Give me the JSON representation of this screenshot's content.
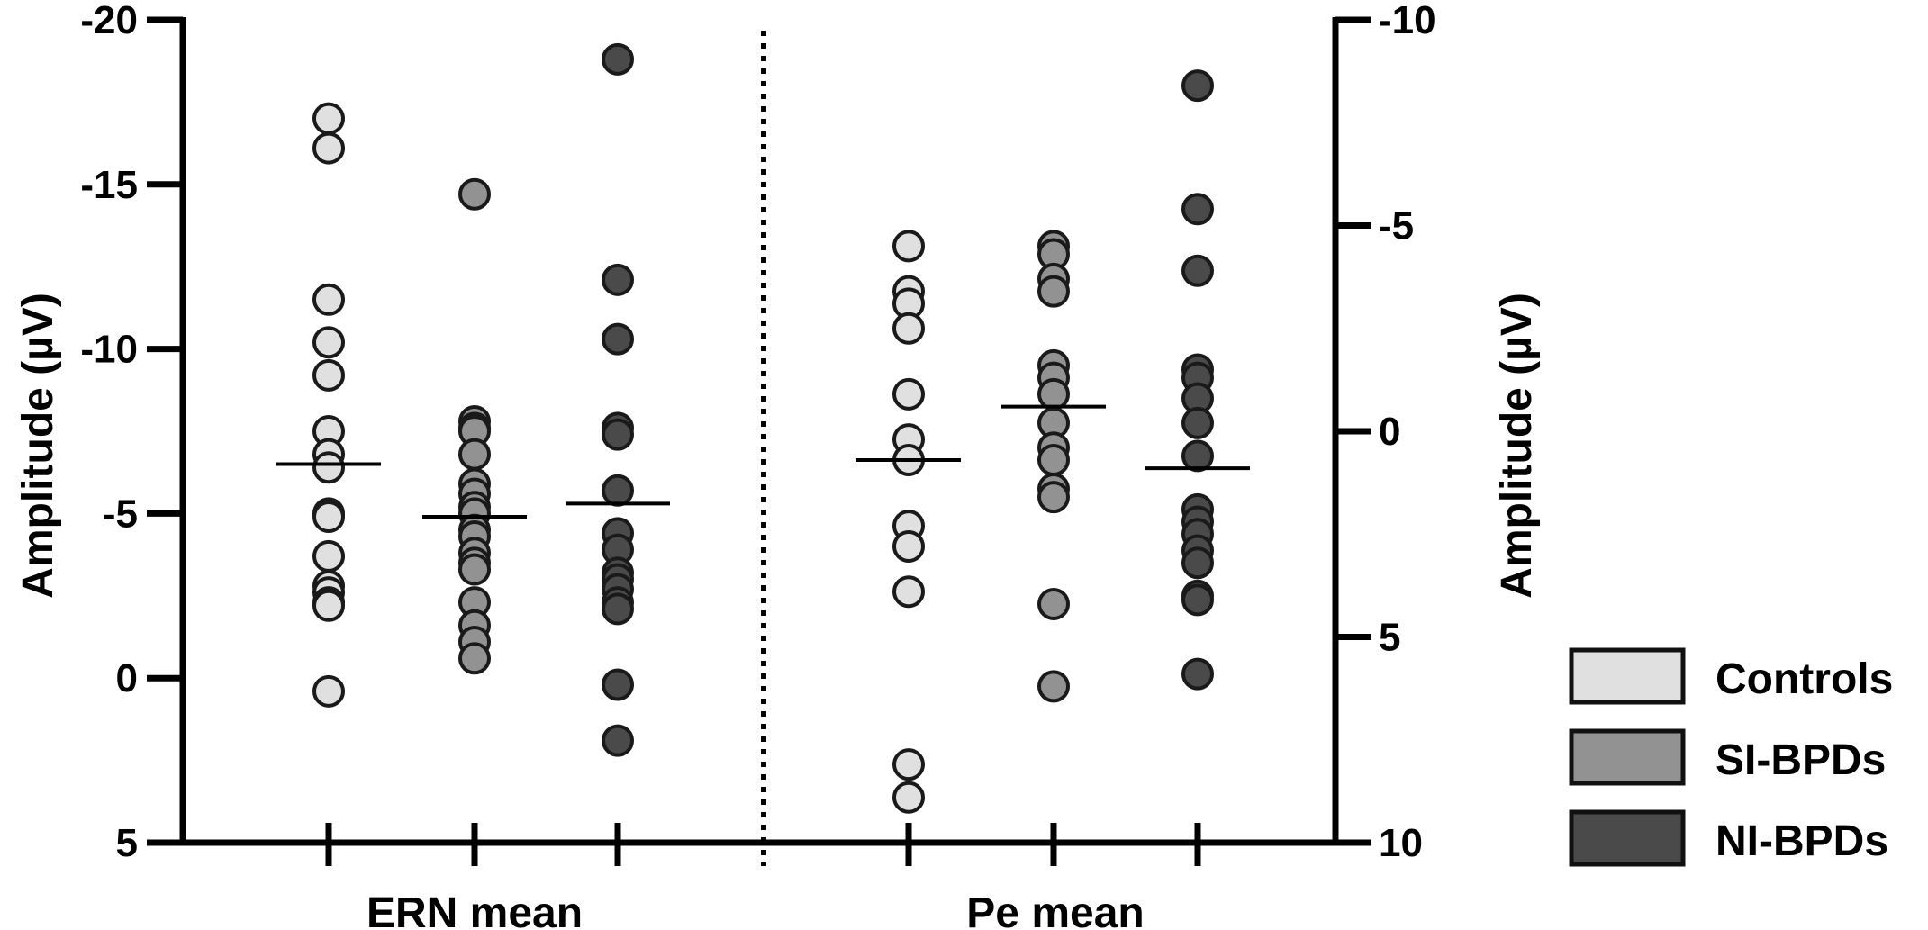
{
  "chart_data": {
    "type": "scatter",
    "subtype": "grouped dot plot with mean lines",
    "left_axis": {
      "label": "Amplitude (µV)",
      "range": [
        5,
        -20
      ],
      "inverted": true,
      "ticks": [
        -20,
        -15,
        -10,
        -5,
        0,
        5
      ],
      "tick_labels": [
        "-20",
        "-15",
        "-10",
        "-5",
        "0",
        "5"
      ]
    },
    "right_axis": {
      "label": "Amplitude (µV)",
      "range": [
        10,
        -10
      ],
      "inverted": true,
      "ticks": [
        -10,
        -5,
        0,
        5,
        10
      ],
      "tick_labels": [
        "-10",
        "-5",
        "0",
        "5",
        "10"
      ]
    },
    "panels": [
      {
        "label": "ERN mean",
        "axis": "left",
        "groups": [
          {
            "series": "Controls",
            "mean": -6.5,
            "values": [
              -17.0,
              -16.1,
              -11.5,
              -10.2,
              -9.2,
              -7.5,
              -6.8,
              -6.4,
              -5.0,
              -4.9,
              -3.7,
              -2.8,
              -2.6,
              -2.3,
              -2.2,
              0.4
            ]
          },
          {
            "series": "SI-BPDs",
            "mean": -4.9,
            "values": [
              -14.7,
              -7.8,
              -7.6,
              -7.5,
              -6.8,
              -5.9,
              -5.6,
              -5.2,
              -5.0,
              -4.5,
              -4.3,
              -3.8,
              -3.5,
              -3.3,
              -2.3,
              -1.6,
              -1.1,
              -0.6
            ]
          },
          {
            "series": "NI-BPDs",
            "mean": -5.3,
            "values": [
              -18.8,
              -12.1,
              -10.3,
              -7.6,
              -7.4,
              -5.7,
              -4.4,
              -3.9,
              -3.2,
              -3.0,
              -2.7,
              -2.3,
              -2.1,
              0.2,
              1.9
            ]
          }
        ]
      },
      {
        "label": "Pe mean",
        "axis": "right",
        "groups": [
          {
            "series": "Controls",
            "mean": 0.7,
            "values": [
              -4.5,
              -3.4,
              -3.1,
              -2.5,
              -0.9,
              0.2,
              0.7,
              2.3,
              2.8,
              3.9,
              8.1,
              8.9
            ]
          },
          {
            "series": "SI-BPDs",
            "mean": -0.6,
            "values": [
              -4.5,
              -4.3,
              -3.7,
              -3.4,
              -1.6,
              -1.3,
              -0.9,
              -0.2,
              0.4,
              0.7,
              1.4,
              1.6,
              4.2,
              6.2
            ]
          },
          {
            "series": "NI-BPDs",
            "mean": 0.9,
            "values": [
              -8.4,
              -5.4,
              -3.9,
              -1.5,
              -1.3,
              -0.8,
              -0.2,
              0.6,
              1.9,
              2.2,
              2.5,
              2.9,
              3.2,
              4.0,
              4.1,
              5.9
            ]
          }
        ]
      }
    ],
    "series": [
      {
        "name": "Controls",
        "color": "#e0e0e0"
      },
      {
        "name": "SI-BPDs",
        "color": "#929292"
      },
      {
        "name": "NI-BPDs",
        "color": "#4a4a4a"
      }
    ],
    "legend": {
      "position": "right",
      "entries": [
        "Controls",
        "SI-BPDs",
        "NI-BPDs"
      ]
    },
    "separator": "dotted",
    "grid": false
  }
}
